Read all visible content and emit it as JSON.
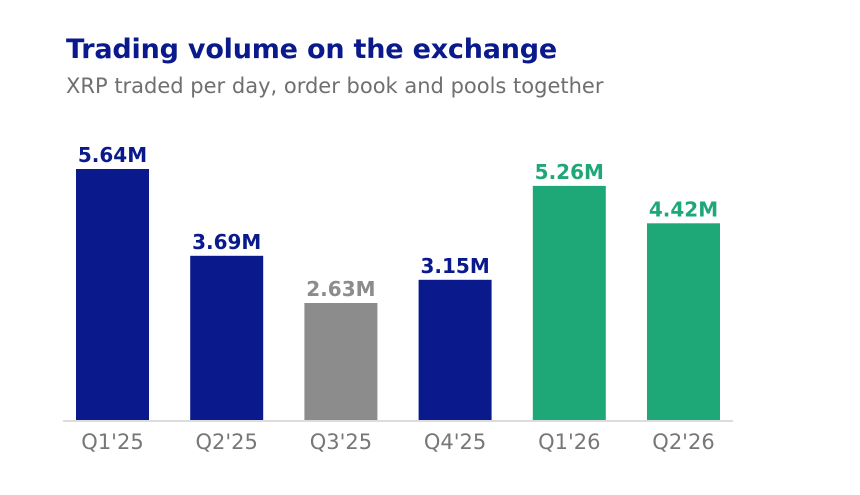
{
  "chart_data": {
    "type": "bar",
    "title": "Trading volume on the exchange",
    "subtitle": "XRP traded per day, order book and pools together",
    "categories": [
      "Q1'25",
      "Q2'25",
      "Q3'25",
      "Q4'25",
      "Q1'26",
      "Q2'26"
    ],
    "values": [
      5.64,
      3.69,
      2.63,
      3.15,
      5.26,
      4.42
    ],
    "value_labels": [
      "5.64M",
      "3.69M",
      "2.63M",
      "3.15M",
      "5.26M",
      "4.42M"
    ],
    "unit": "M",
    "ylim": [
      0,
      5.64
    ],
    "grid": false,
    "legend": "none",
    "bar_colors": [
      "#0a1a8c",
      "#0a1a8c",
      "#8c8c8c",
      "#0a1a8c",
      "#1fa877",
      "#1fa877"
    ],
    "tick_color": "#777777",
    "axis_color": "#dcdcdc"
  }
}
